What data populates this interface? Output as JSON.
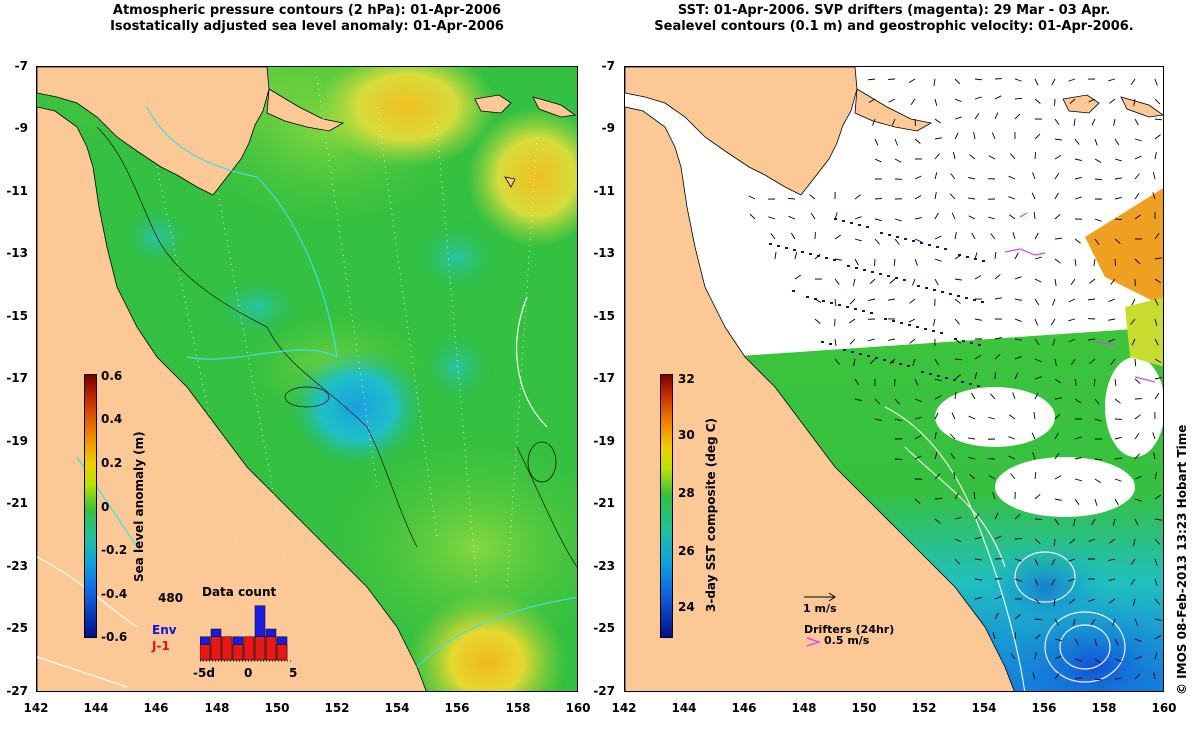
{
  "left_panel": {
    "title_line1": "Atmospheric pressure contours (2 hPa): 01-Apr-2006",
    "title_line2": "Isostatically adjusted sea level anomaly: 01-Apr-2006",
    "y_ticks": [
      "-7",
      "-9",
      "-11",
      "-13",
      "-15",
      "-17",
      "-19",
      "-21",
      "-23",
      "-25",
      "-27"
    ],
    "x_ticks": [
      "142",
      "144",
      "146",
      "148",
      "150",
      "152",
      "154",
      "156",
      "158",
      "160"
    ],
    "colorbar": {
      "label": "Sea level anomaly (m)",
      "ticks": [
        "0.6",
        "0.4",
        "0.2",
        "0",
        "-0.2",
        "-0.4",
        "-0.6"
      ],
      "range": [
        -0.6,
        0.6
      ]
    },
    "inset": {
      "title": "Data count",
      "max_label": "480",
      "env_label": "Env",
      "j1_label": "J-1",
      "x_ticks": [
        "-5d",
        "0",
        "5"
      ],
      "env_values": [
        3,
        4,
        3,
        3,
        3,
        7,
        4,
        3
      ],
      "j1_values": [
        2,
        3,
        3,
        2,
        3,
        3,
        3,
        2
      ]
    }
  },
  "right_panel": {
    "title_line1": "SST: 01-Apr-2006. SVP drifters (magenta): 29 Mar - 03 Apr.",
    "title_line2": "Sealevel contours (0.1 m) and geostrophic velocity: 01-Apr-2006.",
    "y_ticks": [
      "-7",
      "-9",
      "-11",
      "-13",
      "-15",
      "-17",
      "-19",
      "-21",
      "-23",
      "-25",
      "-27"
    ],
    "x_ticks": [
      "142",
      "144",
      "146",
      "148",
      "150",
      "152",
      "154",
      "156",
      "158",
      "160"
    ],
    "colorbar": {
      "label": "3-day SST composite (deg C)",
      "ticks": [
        "32",
        "30",
        "28",
        "26",
        "24"
      ],
      "range": [
        23,
        32
      ]
    },
    "velocity_scale_label": "1 m/s",
    "drifters_label": "Drifters (24hr)",
    "drifters_speed_label": "0.5 m/s"
  },
  "credit": "© IMOS 08-Feb-2013 13:23 Hobart Time",
  "colors": {
    "land": "#fbc896",
    "sea_mid": "#2dbd42",
    "sst_green": "#3cc43c",
    "sst_cyan": "#1fc2d6",
    "drifter": "#e040e0"
  }
}
